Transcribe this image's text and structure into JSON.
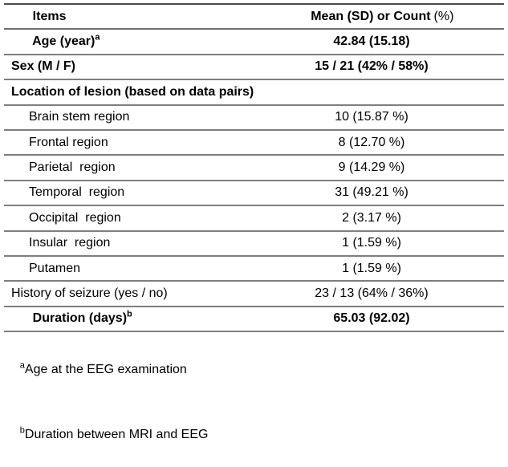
{
  "colors": {
    "rule_top": "#4c4c4c",
    "rule": "#7e7e7e",
    "text": "#000000",
    "background": "#ffffff"
  },
  "table": {
    "columns": {
      "items": "Items",
      "value_bold": "Mean (SD) or Count",
      "value_light": "(%)"
    },
    "rows": [
      {
        "label": "Age (year)",
        "sup": "a",
        "value": "42.84 (15.18)"
      },
      {
        "label": "Sex (M / F)",
        "value": "15 / 21 (42% / 58%)"
      },
      {
        "label": "Location of lesion (based on data pairs)"
      },
      {
        "label": "Brain stem region",
        "value": "10 (15.87 %)"
      },
      {
        "label": "Frontal region",
        "value": "8 (12.70 %)"
      },
      {
        "label": "Parietal  region",
        "value": "9 (14.29 %)"
      },
      {
        "label": "Temporal  region",
        "value": "31 (49.21 %)"
      },
      {
        "label": "Occipital  region",
        "value": "2 (3.17 %)"
      },
      {
        "label": "Insular  region",
        "value": "1 (1.59 %)"
      },
      {
        "label": "Putamen",
        "value": "1 (1.59 %)"
      },
      {
        "label": "History of seizure (yes / no)",
        "value": "23 / 13 (64% / 36%)"
      },
      {
        "label": "Duration (days)",
        "sup": "b",
        "value": "65.03 (92.02)"
      }
    ],
    "footnotes": [
      {
        "sup": "a",
        "text": "Age at the EEG examination"
      },
      {
        "sup": "b",
        "text": "Duration between MRI and EEG"
      }
    ]
  }
}
